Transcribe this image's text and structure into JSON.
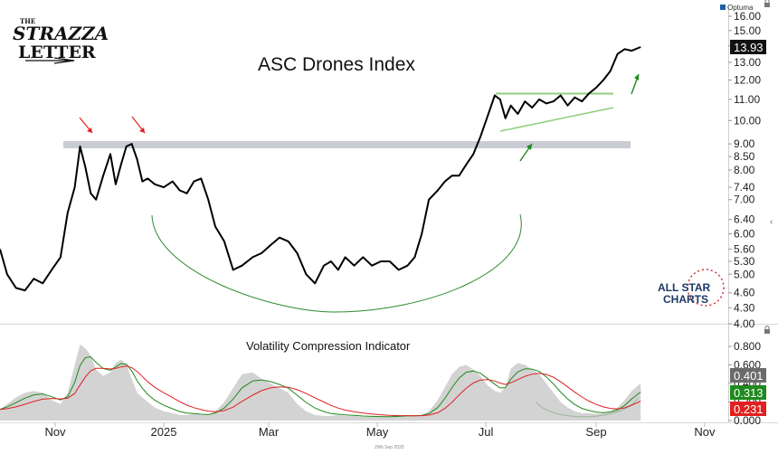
{
  "branding": {
    "logo_top": "THE",
    "logo_line1": "STRAZZA",
    "logo_line2": "LETTER",
    "vendor": "Optuma",
    "watermark_line1": "ALL STAR",
    "watermark_line2": "CHARTS",
    "footer_date": "29th Sep 2025"
  },
  "colors": {
    "price": "#000000",
    "gray_fill": "#c4c4c4",
    "green": "#1e8a1e",
    "red": "#e02020",
    "resistance_band": "#c9ccd3",
    "arrow_red": "#e02020",
    "arrow_green": "#1e8a1e",
    "arc_green": "#2e8b2e",
    "channel_green": "#8fcf7a"
  },
  "chart_data": [
    {
      "type": "line",
      "title": "ASC Drones Index",
      "scale": "log",
      "y_ticks": [
        "16.00",
        "15.00",
        "14.00",
        "13.00",
        "12.00",
        "11.00",
        "10.00",
        "9.00",
        "8.50",
        "8.00",
        "7.40",
        "7.00",
        "6.40",
        "6.00",
        "5.60",
        "5.30",
        "5.00",
        "4.60",
        "4.30",
        "4.00"
      ],
      "x_ticks": [
        "Nov",
        "2025",
        "Mar",
        "May",
        "Jul",
        "Sep",
        "Nov"
      ],
      "last_value": "13.93",
      "series": [
        {
          "x": [
            "2024-10-01",
            "2024-10-05",
            "2024-10-10",
            "2024-10-15",
            "2024-10-20",
            "2024-10-25",
            "2024-10-30",
            "2024-11-04",
            "2024-11-08",
            "2024-11-12",
            "2024-11-15",
            "2024-11-18",
            "2024-11-21",
            "2024-11-24",
            "2024-11-28",
            "2024-12-02",
            "2024-12-05",
            "2024-12-08",
            "2024-12-11",
            "2024-12-14",
            "2024-12-17",
            "2024-12-20",
            "2024-12-23",
            "2024-12-27",
            "2025-01-01",
            "2025-01-06",
            "2025-01-10",
            "2025-01-14",
            "2025-01-18",
            "2025-01-22",
            "2025-01-26",
            "2025-01-30",
            "2025-02-04",
            "2025-02-09",
            "2025-02-14",
            "2025-02-20",
            "2025-02-25",
            "2025-03-02",
            "2025-03-07",
            "2025-03-12",
            "2025-03-17",
            "2025-03-22",
            "2025-03-27",
            "2025-04-01",
            "2025-04-05",
            "2025-04-09",
            "2025-04-13",
            "2025-04-18",
            "2025-04-23",
            "2025-04-28",
            "2025-05-03",
            "2025-05-08",
            "2025-05-13",
            "2025-05-18",
            "2025-05-22",
            "2025-05-26",
            "2025-05-30",
            "2025-06-04",
            "2025-06-08",
            "2025-06-12",
            "2025-06-16",
            "2025-06-20",
            "2025-06-24",
            "2025-06-28",
            "2025-07-02",
            "2025-07-06",
            "2025-07-09",
            "2025-07-12",
            "2025-07-15",
            "2025-07-19",
            "2025-07-23",
            "2025-07-27",
            "2025-07-31",
            "2025-08-04",
            "2025-08-08",
            "2025-08-12",
            "2025-08-16",
            "2025-08-20",
            "2025-08-24",
            "2025-08-28",
            "2025-09-01",
            "2025-09-05",
            "2025-09-09",
            "2025-09-13",
            "2025-09-17",
            "2025-09-21",
            "2025-09-26"
          ],
          "y": [
            5.6,
            5.0,
            4.7,
            4.65,
            4.9,
            4.8,
            5.1,
            5.4,
            6.6,
            7.4,
            8.9,
            8.1,
            7.2,
            7.0,
            7.8,
            8.6,
            7.5,
            8.2,
            8.9,
            9.0,
            8.4,
            7.6,
            7.7,
            7.5,
            7.4,
            7.6,
            7.3,
            7.2,
            7.6,
            7.7,
            7.0,
            6.2,
            5.8,
            5.1,
            5.2,
            5.4,
            5.5,
            5.7,
            5.9,
            5.8,
            5.5,
            5.0,
            4.8,
            5.2,
            5.3,
            5.1,
            5.4,
            5.2,
            5.4,
            5.2,
            5.3,
            5.3,
            5.1,
            5.2,
            5.4,
            6.0,
            7.0,
            7.3,
            7.6,
            7.8,
            7.8,
            8.2,
            8.6,
            9.3,
            10.2,
            11.2,
            11.0,
            10.1,
            10.7,
            10.3,
            10.9,
            10.6,
            11.0,
            10.8,
            10.9,
            11.2,
            10.7,
            11.1,
            10.9,
            11.3,
            11.6,
            12.0,
            12.5,
            13.5,
            13.8,
            13.7,
            13.93
          ]
        }
      ],
      "annotations": {
        "resistance_level": 8.95,
        "channel_top": 11.3,
        "channel_bottom_start": 9.9,
        "channel_bottom_end": 10.7
      }
    },
    {
      "type": "area",
      "title": "Volatility Compression Indicator",
      "y_ticks": [
        "0.800",
        "0.600",
        "0.400",
        "0.200",
        "0.000"
      ],
      "ylim": [
        0,
        0.8
      ],
      "legend_values": [
        "0.401",
        "0.313",
        "0.231"
      ],
      "series": [
        {
          "x": [
            "2024-10-01",
            "2024-10-05",
            "2024-10-10",
            "2024-10-15",
            "2024-10-20",
            "2024-10-25",
            "2024-10-30",
            "2024-11-04",
            "2024-11-08",
            "2024-11-12",
            "2024-11-15",
            "2024-11-18",
            "2024-11-21",
            "2024-11-24",
            "2024-11-28",
            "2024-12-02",
            "2024-12-05",
            "2024-12-08",
            "2024-12-11",
            "2024-12-14",
            "2024-12-17",
            "2024-12-20",
            "2024-12-23",
            "2024-12-27",
            "2025-01-01",
            "2025-01-06",
            "2025-01-10",
            "2025-01-14",
            "2025-01-18",
            "2025-01-22",
            "2025-01-26",
            "2025-01-30",
            "2025-02-04",
            "2025-02-09",
            "2025-02-14",
            "2025-02-20",
            "2025-02-25",
            "2025-03-02",
            "2025-03-07",
            "2025-03-12",
            "2025-03-17",
            "2025-03-22",
            "2025-03-27",
            "2025-04-01",
            "2025-04-05",
            "2025-04-09",
            "2025-04-13",
            "2025-04-18",
            "2025-04-23",
            "2025-04-28",
            "2025-05-03",
            "2025-05-08",
            "2025-05-13",
            "2025-05-18",
            "2025-05-22",
            "2025-05-26",
            "2025-05-30",
            "2025-06-04",
            "2025-06-08",
            "2025-06-12",
            "2025-06-16",
            "2025-06-20",
            "2025-06-24",
            "2025-06-28",
            "2025-07-02",
            "2025-07-06",
            "2025-07-09",
            "2025-07-12",
            "2025-07-15",
            "2025-07-19",
            "2025-07-23",
            "2025-07-27",
            "2025-07-31",
            "2025-08-04",
            "2025-08-08",
            "2025-08-12",
            "2025-08-16",
            "2025-08-20",
            "2025-08-24",
            "2025-08-28",
            "2025-09-01",
            "2025-09-05",
            "2025-09-09",
            "2025-09-13",
            "2025-09-17",
            "2025-09-21",
            "2025-09-26"
          ],
          "y": [
            0.12,
            0.18,
            0.25,
            0.3,
            0.32,
            0.3,
            0.22,
            0.18,
            0.3,
            0.6,
            0.82,
            0.78,
            0.7,
            0.55,
            0.48,
            0.52,
            0.62,
            0.66,
            0.6,
            0.45,
            0.3,
            0.25,
            0.2,
            0.14,
            0.1,
            0.08,
            0.06,
            0.06,
            0.07,
            0.06,
            0.06,
            0.1,
            0.2,
            0.35,
            0.5,
            0.52,
            0.45,
            0.4,
            0.35,
            0.3,
            0.18,
            0.1,
            0.06,
            0.05,
            0.05,
            0.06,
            0.05,
            0.05,
            0.04,
            0.04,
            0.04,
            0.04,
            0.05,
            0.06,
            0.05,
            0.06,
            0.1,
            0.22,
            0.36,
            0.5,
            0.58,
            0.6,
            0.55,
            0.48,
            0.38,
            0.32,
            0.3,
            0.36,
            0.56,
            0.62,
            0.6,
            0.55,
            0.5,
            0.4,
            0.3,
            0.2,
            0.14,
            0.1,
            0.08,
            0.08,
            0.07,
            0.08,
            0.1,
            0.14,
            0.22,
            0.32,
            0.401
          ]
        }
      ]
    }
  ]
}
